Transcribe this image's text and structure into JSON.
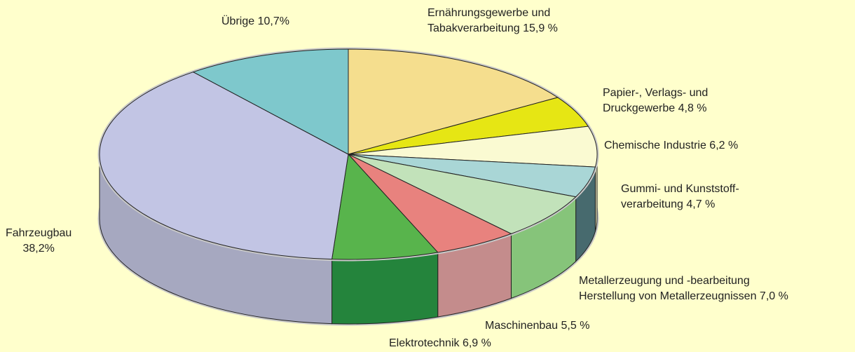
{
  "chart_data": {
    "type": "pie3d",
    "categories": [
      "Ernährungsgewerbe und\nTabakverarbeitung",
      "Papier-, Verlags- und\nDruckgewerbe",
      "Chemische Industrie",
      "Gummi- und Kunststoff-\nverarbeitung",
      "Metallerzeugung und -bearbeitung\nHerstellung von Metallerzeugnissen",
      "Maschinenbau",
      "Elektrotechnik",
      "Fahrzeugbau\n",
      "Übrige"
    ],
    "values": [
      15.9,
      4.8,
      6.2,
      4.7,
      7.0,
      5.5,
      6.9,
      38.2,
      10.7
    ],
    "value_labels": [
      "15,9 %",
      "4,8 %",
      "6,2 %",
      "4,7 %",
      "7,0 %",
      "5,5 %",
      "6,9 %",
      "38,2%",
      "10,7%"
    ],
    "colors": [
      "#f5de8e",
      "#e6e614",
      "#fafad2",
      "#a9d6d6",
      "#c2e2ba",
      "#e8827e",
      "#58b44c",
      "#c2c5e4",
      "#7ec8cc"
    ],
    "side_colors": [
      "#c9b471",
      "#b8b810",
      "#d0d0a8",
      "#476a6e",
      "#86c47a",
      "#c48c8c",
      "#24843c",
      "#a6a8c0",
      "#5aa6a8"
    ]
  }
}
